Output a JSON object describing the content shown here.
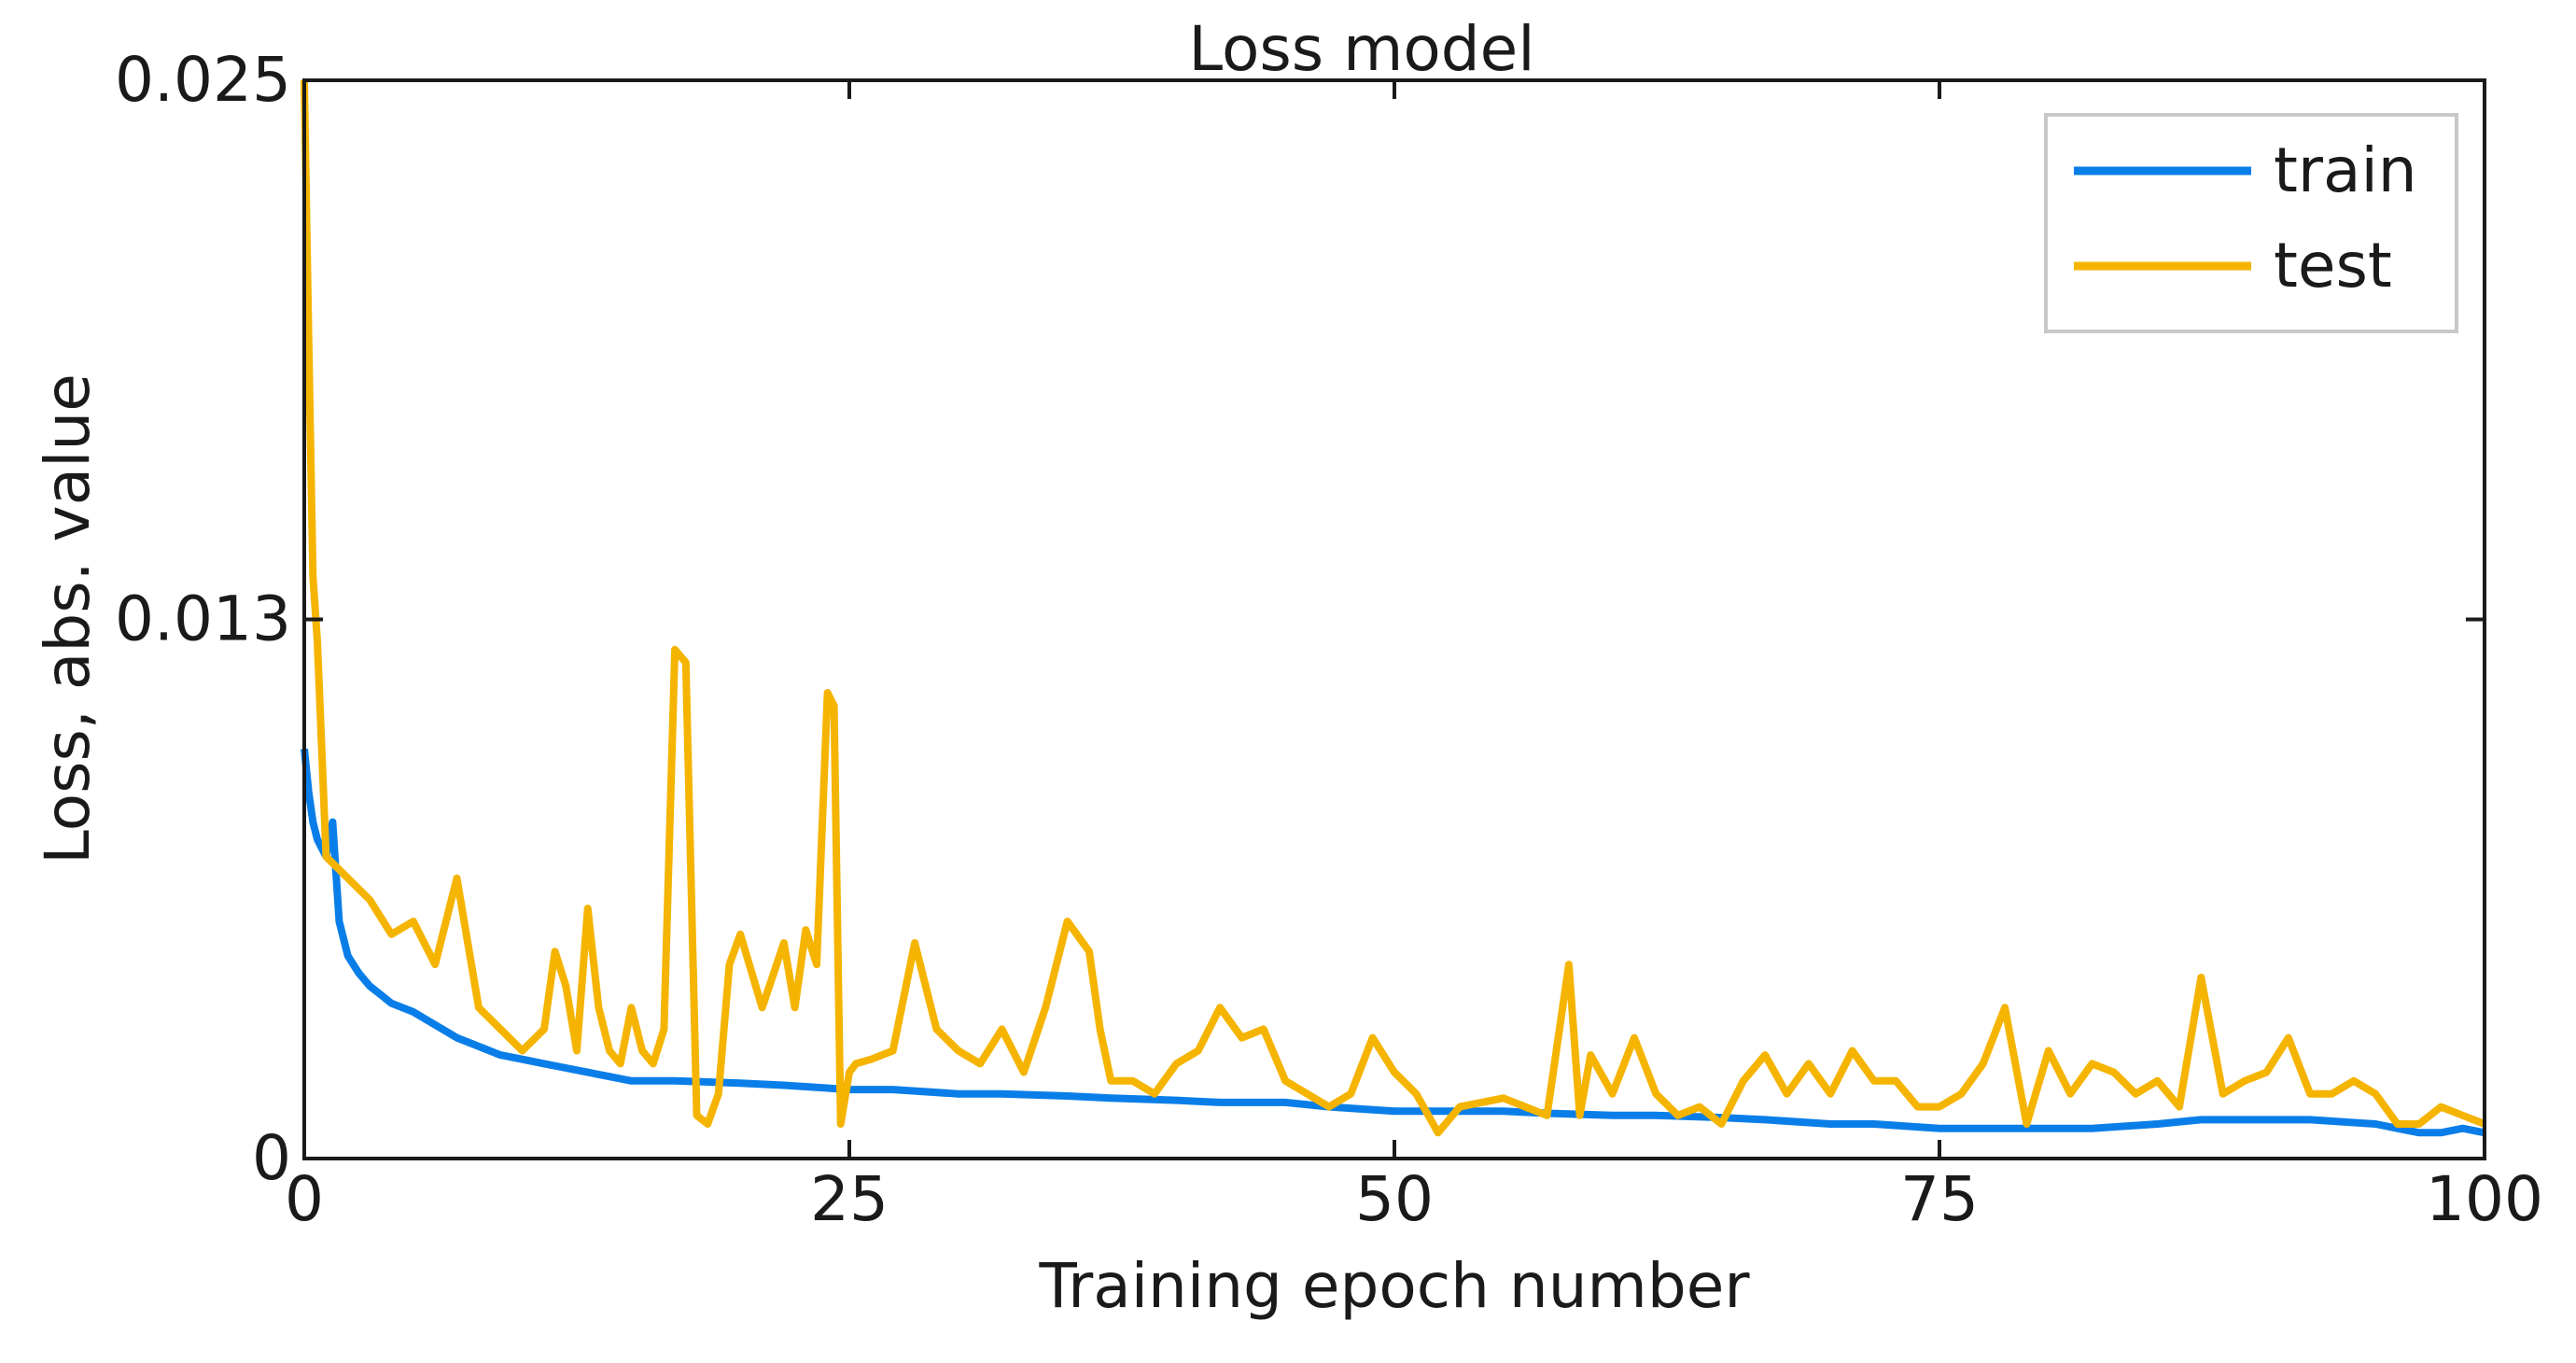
{
  "chart_data": {
    "type": "line",
    "title": "Loss model",
    "xlabel": "Training epoch number",
    "ylabel": "Loss, abs. value",
    "xlim": [
      0,
      100
    ],
    "ylim": [
      0,
      0.025
    ],
    "xticks": [
      0,
      25,
      50,
      75,
      100
    ],
    "xtick_labels": [
      "0",
      "25",
      "50",
      "75",
      "100"
    ],
    "yticks": [
      0,
      0.0125,
      0.025
    ],
    "ytick_labels": [
      "0",
      "0.013",
      "0.025"
    ],
    "grid": false,
    "legend_position": "top-right",
    "series": [
      {
        "name": "train",
        "color": "#0a7ee8",
        "x": [
          0,
          0.2,
          0.4,
          0.6,
          0.8,
          1,
          1.3,
          1.6,
          2,
          2.5,
          3,
          3.5,
          4,
          5,
          6,
          7,
          8,
          9,
          10,
          11,
          12,
          13,
          14,
          15,
          17,
          20,
          22,
          25,
          27,
          30,
          32,
          35,
          37,
          40,
          42,
          45,
          47,
          50,
          52,
          55,
          57,
          60,
          62,
          65,
          67,
          70,
          72,
          75,
          77,
          80,
          82,
          85,
          87,
          90,
          92,
          95,
          96,
          97,
          98,
          99,
          100
        ],
        "values": [
          0.0095,
          0.0085,
          0.0078,
          0.0074,
          0.0072,
          0.007,
          0.0078,
          0.0055,
          0.0047,
          0.0043,
          0.004,
          0.0038,
          0.0036,
          0.0034,
          0.0031,
          0.0028,
          0.0026,
          0.0024,
          0.0023,
          0.0022,
          0.0021,
          0.002,
          0.0019,
          0.0018,
          0.0018,
          0.00175,
          0.0017,
          0.0016,
          0.0016,
          0.0015,
          0.0015,
          0.00145,
          0.0014,
          0.00135,
          0.0013,
          0.0013,
          0.0012,
          0.0011,
          0.0011,
          0.0011,
          0.00105,
          0.001,
          0.001,
          0.00095,
          0.0009,
          0.0008,
          0.0008,
          0.0007,
          0.0007,
          0.0007,
          0.0007,
          0.0008,
          0.0009,
          0.0009,
          0.0009,
          0.0008,
          0.0007,
          0.0006,
          0.0006,
          0.0007,
          0.0006
        ]
      },
      {
        "name": "test",
        "color": "#f5b400",
        "x": [
          0,
          0.2,
          0.4,
          0.6,
          0.8,
          1,
          2,
          3,
          4,
          5,
          6,
          7,
          8,
          9,
          10,
          11,
          11.5,
          12,
          12.5,
          13,
          13.5,
          14,
          14.5,
          15,
          15.5,
          16,
          16.5,
          17,
          17.5,
          18,
          18.5,
          19,
          19.5,
          20,
          21,
          22,
          22.5,
          23,
          23.5,
          24,
          24.3,
          24.6,
          25,
          25.3,
          26,
          27,
          28,
          29,
          30,
          31,
          32,
          33,
          34,
          35,
          36,
          36.5,
          37,
          38,
          39,
          40,
          41,
          42,
          43,
          44,
          45,
          46,
          47,
          48,
          49,
          50,
          51,
          52,
          53,
          54,
          55,
          56,
          57,
          58,
          58.5,
          59,
          60,
          61,
          62,
          63,
          64,
          65,
          66,
          67,
          68,
          69,
          70,
          71,
          72,
          73,
          74,
          75,
          76,
          77,
          78,
          79,
          80,
          81,
          82,
          83,
          84,
          85,
          86,
          87,
          88,
          89,
          90,
          91,
          92,
          93,
          94,
          95,
          96,
          97,
          98,
          99,
          100
        ],
        "values": [
          0.025,
          0.019,
          0.0135,
          0.012,
          0.0095,
          0.007,
          0.0065,
          0.006,
          0.0052,
          0.0055,
          0.0045,
          0.0065,
          0.0035,
          0.003,
          0.0025,
          0.003,
          0.0048,
          0.004,
          0.0025,
          0.0058,
          0.0035,
          0.0025,
          0.0022,
          0.0035,
          0.0025,
          0.0022,
          0.003,
          0.0118,
          0.0115,
          0.001,
          0.0008,
          0.0015,
          0.0045,
          0.0052,
          0.0035,
          0.005,
          0.0035,
          0.0053,
          0.0045,
          0.0108,
          0.0105,
          0.0008,
          0.002,
          0.0022,
          0.0023,
          0.0025,
          0.005,
          0.003,
          0.0025,
          0.0022,
          0.003,
          0.002,
          0.0035,
          0.0055,
          0.0048,
          0.003,
          0.0018,
          0.0018,
          0.0015,
          0.0022,
          0.0025,
          0.0035,
          0.0028,
          0.003,
          0.0018,
          0.0015,
          0.0012,
          0.0015,
          0.0028,
          0.002,
          0.0015,
          0.0006,
          0.0012,
          0.0013,
          0.0014,
          0.0012,
          0.001,
          0.0045,
          0.001,
          0.0024,
          0.0015,
          0.0028,
          0.0015,
          0.001,
          0.0012,
          0.0008,
          0.0018,
          0.0024,
          0.0015,
          0.0022,
          0.0015,
          0.0025,
          0.0018,
          0.0018,
          0.0012,
          0.0012,
          0.0015,
          0.0022,
          0.0035,
          0.0008,
          0.0025,
          0.0015,
          0.0022,
          0.002,
          0.0015,
          0.0018,
          0.0012,
          0.0042,
          0.0015,
          0.0018,
          0.002,
          0.0028,
          0.0015,
          0.0015,
          0.0018,
          0.0015,
          0.0008,
          0.0008,
          0.0012,
          0.001,
          0.0008
        ]
      }
    ]
  }
}
